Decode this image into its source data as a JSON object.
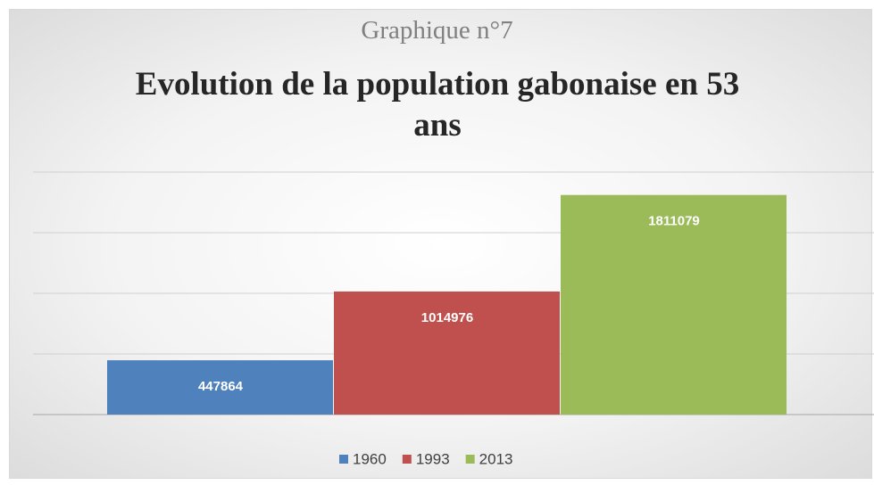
{
  "chart_data": {
    "type": "bar",
    "subtitle": "Graphique n°7",
    "title": "Evolution de la population gabonaise en 53 ans",
    "categories": [
      null
    ],
    "series": [
      {
        "name": "1960",
        "color": "#4f81bd",
        "values": [
          447864
        ]
      },
      {
        "name": "1993",
        "color": "#c0504d",
        "values": [
          1014976
        ]
      },
      {
        "name": "2013",
        "color": "#9bbb59",
        "values": [
          1811079
        ]
      }
    ],
    "ylim": [
      0,
      2000000
    ],
    "yticks": [
      0,
      500000,
      1000000,
      1500000,
      2000000
    ],
    "grid": true,
    "legend": "bottom"
  }
}
